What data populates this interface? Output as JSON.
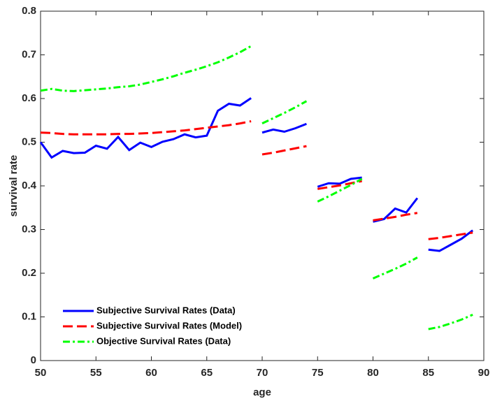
{
  "chart_data": {
    "type": "line",
    "xlabel": "age",
    "ylabel": "survival rate",
    "x": [
      50,
      51,
      52,
      53,
      54,
      55,
      56,
      57,
      58,
      59,
      60,
      61,
      62,
      63,
      64,
      65,
      66,
      67,
      68,
      69,
      null,
      70,
      71,
      72,
      73,
      74,
      null,
      75,
      76,
      77,
      78,
      79,
      null,
      80,
      81,
      82,
      83,
      84,
      null,
      85,
      86,
      87,
      88,
      89
    ],
    "series": [
      {
        "name": "Subjective Survival Rates (Data)",
        "color": "#0000ff",
        "style": "solid",
        "values": [
          0.5,
          0.465,
          0.48,
          0.475,
          0.476,
          0.492,
          0.485,
          0.512,
          0.482,
          0.499,
          0.489,
          0.501,
          0.507,
          0.518,
          0.511,
          0.515,
          0.572,
          0.588,
          0.584,
          0.601,
          null,
          0.522,
          0.529,
          0.524,
          0.532,
          0.542,
          null,
          0.398,
          0.406,
          0.405,
          0.416,
          0.419,
          null,
          0.318,
          0.324,
          0.348,
          0.339,
          0.372,
          null,
          0.254,
          0.251,
          0.265,
          0.279,
          0.298
        ]
      },
      {
        "name": "Subjective Survival Rates (Model)",
        "color": "#ff0000",
        "style": "dashed",
        "values": [
          0.522,
          0.521,
          0.519,
          0.518,
          0.518,
          0.518,
          0.518,
          0.519,
          0.519,
          0.52,
          0.521,
          0.523,
          0.525,
          0.527,
          0.53,
          0.533,
          0.536,
          0.539,
          0.543,
          0.548,
          null,
          0.472,
          0.476,
          0.481,
          0.486,
          0.491,
          null,
          0.393,
          0.397,
          0.401,
          0.406,
          0.411,
          null,
          0.321,
          0.325,
          0.329,
          0.334,
          0.338,
          null,
          0.278,
          0.281,
          0.285,
          0.289,
          0.293
        ]
      },
      {
        "name": "Objective Survival Rates (Data)",
        "color": "#00ff00",
        "style": "dashdot",
        "values": [
          0.618,
          0.622,
          0.618,
          0.617,
          0.619,
          0.621,
          0.623,
          0.626,
          0.628,
          0.632,
          0.638,
          0.644,
          0.651,
          0.659,
          0.666,
          0.674,
          0.683,
          0.694,
          0.706,
          0.72,
          null,
          0.543,
          0.555,
          0.567,
          0.58,
          0.594,
          null,
          0.364,
          0.376,
          0.389,
          0.402,
          0.416,
          null,
          0.188,
          0.199,
          0.21,
          0.222,
          0.236,
          null,
          0.072,
          0.077,
          0.085,
          0.094,
          0.105
        ]
      }
    ],
    "xlim": [
      50,
      90
    ],
    "xticks": [
      50,
      55,
      60,
      65,
      70,
      75,
      80,
      85,
      90
    ],
    "ylim": [
      0,
      0.8
    ],
    "yticks": [
      0,
      0.1,
      0.2,
      0.3,
      0.4,
      0.5,
      0.6,
      0.7,
      0.8
    ],
    "legend": "lower left"
  }
}
